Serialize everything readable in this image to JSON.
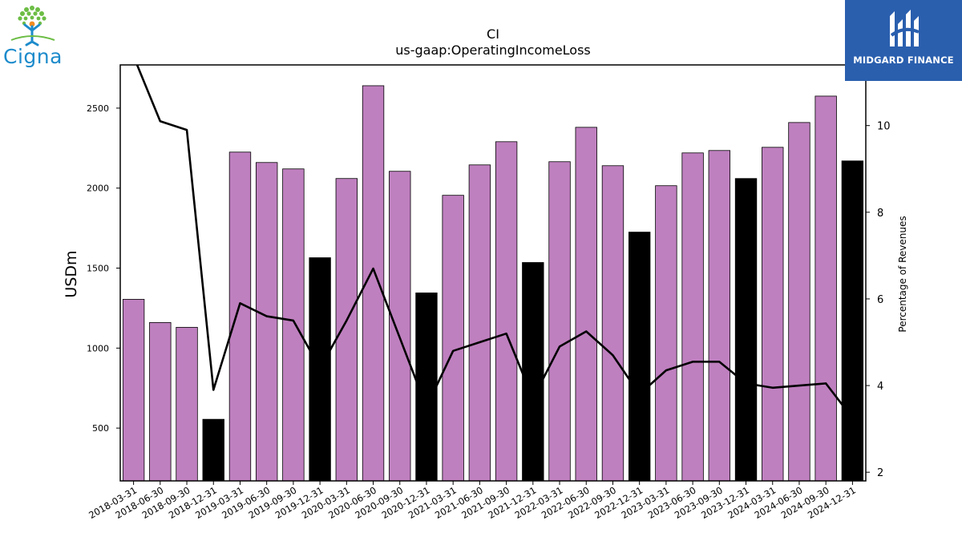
{
  "brand": {
    "company_logo_text": "Cigna",
    "publisher_logo_text": "MIDGARD FINANCE"
  },
  "chart_data": {
    "type": "bar",
    "title": "CI",
    "subtitle": "us-gaap:OperatingIncomeLoss",
    "ylabel": "USDm",
    "y2label": "Percentage of Revenues",
    "ylim": [
      170,
      2770
    ],
    "y2lim": [
      1.8,
      11.4
    ],
    "yticks": [
      500,
      1000,
      1500,
      2000,
      2500
    ],
    "y2ticks": [
      2,
      4,
      6,
      8,
      10
    ],
    "categories": [
      "2018-03-31",
      "2018-06-30",
      "2018-09-30",
      "2018-12-31",
      "2019-03-31",
      "2019-06-30",
      "2019-09-30",
      "2019-12-31",
      "2020-03-31",
      "2020-06-30",
      "2020-09-30",
      "2020-12-31",
      "2021-03-31",
      "2021-06-30",
      "2021-09-30",
      "2021-12-31",
      "2022-03-31",
      "2022-06-30",
      "2022-09-30",
      "2022-12-31",
      "2023-03-31",
      "2023-06-30",
      "2023-09-30",
      "2023-12-31",
      "2024-03-31",
      "2024-06-30",
      "2024-09-30",
      "2024-12-31"
    ],
    "series": [
      {
        "kind": "bar",
        "values": [
          1305,
          1160,
          1130,
          555,
          2225,
          2160,
          2120,
          1565,
          2060,
          2640,
          2105,
          1345,
          1955,
          2145,
          2290,
          1535,
          2165,
          2380,
          2140,
          1725,
          2015,
          2220,
          2235,
          2060,
          2255,
          2410,
          2575,
          2170
        ],
        "fourth_quarter_flags": [
          false,
          false,
          false,
          true,
          false,
          false,
          false,
          true,
          false,
          false,
          false,
          true,
          false,
          false,
          false,
          true,
          false,
          false,
          false,
          true,
          false,
          false,
          false,
          true,
          false,
          false,
          false,
          true
        ]
      },
      {
        "kind": "line",
        "axis": "right",
        "values": [
          11.6,
          10.1,
          9.9,
          3.9,
          5.9,
          5.6,
          5.5,
          4.4,
          5.5,
          6.7,
          5.1,
          3.5,
          4.8,
          5.0,
          5.2,
          3.7,
          4.9,
          5.25,
          4.7,
          3.8,
          4.35,
          4.55,
          4.55,
          4.05,
          3.95,
          4.0,
          4.05,
          3.25
        ]
      }
    ],
    "colors": {
      "bar": "#bf80bf",
      "bar_fourth_quarter": "#000000",
      "bar_edge": "#000000",
      "line": "#000000"
    },
    "grid": false,
    "legend": "none"
  }
}
